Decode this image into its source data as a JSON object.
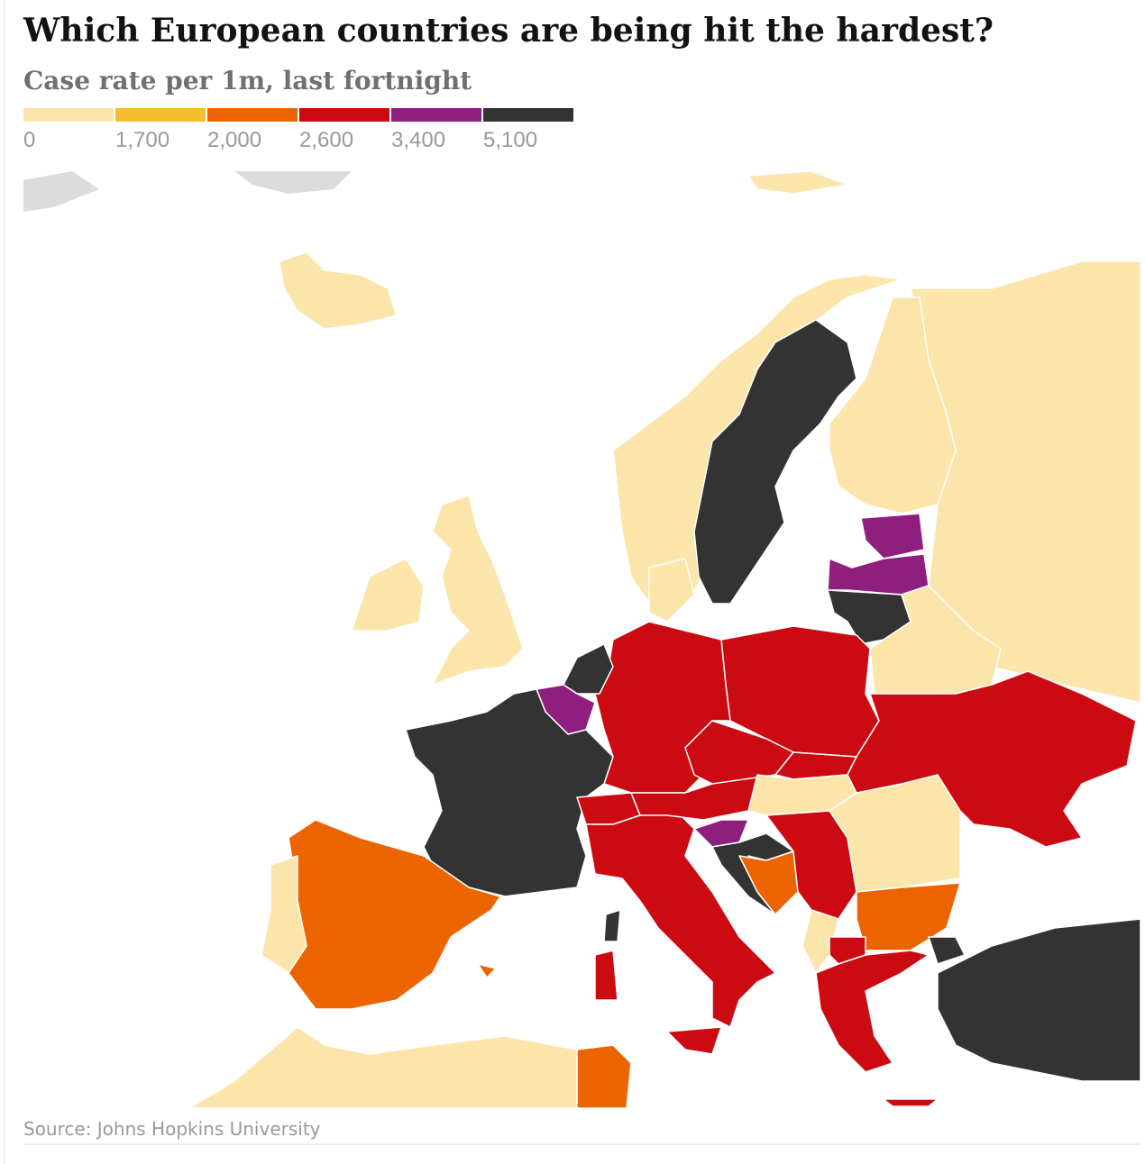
{
  "chart_data": {
    "type": "choropleth",
    "title": "Which European countries are being hit the hardest?",
    "subtitle": "Case rate per 1m, last fortnight",
    "colors": [
      "#fbe5ab",
      "#f5be2c",
      "#eb6400",
      "#cc0a11",
      "#8e1f7e",
      "#333333"
    ],
    "ticks": [
      0,
      {
        "value": 1700,
        "label": "1,700"
      },
      {
        "value": 2000,
        "label": "2,000"
      },
      {
        "value": 2600,
        "label": "2,600"
      },
      {
        "value": 3400,
        "label": "3,400"
      },
      {
        "value": 5100,
        "label": "5,100"
      }
    ],
    "source": "Source: Johns Hopkins University"
  }
}
